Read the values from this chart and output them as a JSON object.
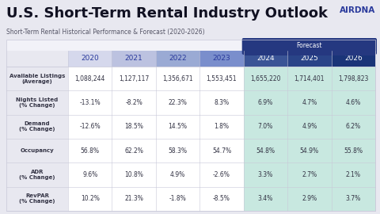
{
  "title": "U.S. Short-Term Rental Industry Outlook",
  "subtitle": "Short-Term Rental Historical Performance & Forecast (2020-2026)",
  "logo_text": "AIRDNA",
  "forecast_label": "Forecast",
  "columns": [
    "2020",
    "2021",
    "2022",
    "2023",
    "2024",
    "2025",
    "2026"
  ],
  "rows": [
    {
      "label": "Available Listings\n(Average)",
      "values": [
        "1,088,244",
        "1,127,117",
        "1,356,671",
        "1,553,451",
        "1,655,220",
        "1,714,401",
        "1,798,823"
      ]
    },
    {
      "label": "Nights Listed\n(% Change)",
      "values": [
        "-13.1%",
        "-8.2%",
        "22.3%",
        "8.3%",
        "6.9%",
        "4.7%",
        "4.6%"
      ]
    },
    {
      "label": "Demand\n(% Change)",
      "values": [
        "-12.6%",
        "18.5%",
        "14.5%",
        "1.8%",
        "7.0%",
        "4.9%",
        "6.2%"
      ]
    },
    {
      "label": "Occupancy",
      "values": [
        "56.8%",
        "62.2%",
        "58.3%",
        "54.7%",
        "54.8%",
        "54.9%",
        "55.8%"
      ]
    },
    {
      "label": "ADR\n(% Change)",
      "values": [
        "9.6%",
        "10.8%",
        "4.9%",
        "-2.6%",
        "3.3%",
        "2.7%",
        "2.1%"
      ]
    },
    {
      "label": "RevPAR\n(% Change)",
      "values": [
        "10.2%",
        "21.3%",
        "-1.8%",
        "-8.5%",
        "3.4%",
        "2.9%",
        "3.7%"
      ]
    }
  ],
  "bg_color": "#e8e8f0",
  "title_color": "#111122",
  "airdna_color": "#2a3a9c",
  "subtitle_color": "#555566",
  "header_hist_colors": [
    "#d5d8ec",
    "#bcc2e0",
    "#9aaad4",
    "#7a8ecc"
  ],
  "header_forecast_colors": [
    "#3a5496",
    "#2a4488",
    "#1a3478"
  ],
  "forecast_banner_color": "#253880",
  "forecast_text_color": "#ffffff",
  "cell_hist_bg": "#ffffff",
  "cell_forecast_bg": "#c8e8e0",
  "label_col_bg": "#e8e8f0",
  "header_label_bg": "#e8e8f0",
  "cell_text_color": "#333344",
  "label_text_color": "#333344",
  "header_hist_text": "#2a3a9c",
  "header_forecast_text": "#ffffff",
  "border_color": "#c8c8d8",
  "title_fontsize": 13,
  "subtitle_fontsize": 5.5,
  "logo_fontsize": 7.5,
  "header_fontsize": 6.5,
  "label_fontsize": 5.0,
  "cell_fontsize": 5.5
}
